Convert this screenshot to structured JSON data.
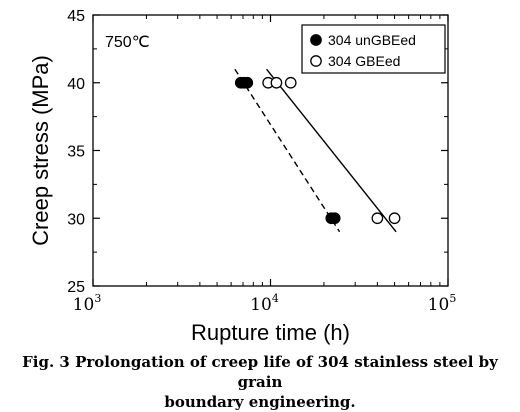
{
  "chart_data": {
    "type": "scatter",
    "annotation": "750℃",
    "xlabel": "Rupture time (h)",
    "ylabel": "Creep stress (MPa)",
    "x_scale": "log",
    "xlim": [
      1000,
      100000
    ],
    "ylim": [
      25,
      45
    ],
    "xticks": [
      {
        "value": 1000,
        "base": "10",
        "exp": "3"
      },
      {
        "value": 10000,
        "base": "10",
        "exp": "4"
      },
      {
        "value": 100000,
        "base": "10",
        "exp": "5"
      }
    ],
    "yticks": [
      25,
      30,
      35,
      40,
      45
    ],
    "legend_position": "top-right",
    "grid": false,
    "series": [
      {
        "name": "304 unGBEed",
        "marker": "filled-circle",
        "points": [
          {
            "x": 6800,
            "y": 40
          },
          {
            "x": 7100,
            "y": 40
          },
          {
            "x": 7400,
            "y": 40
          },
          {
            "x": 22000,
            "y": 30
          },
          {
            "x": 23000,
            "y": 30
          }
        ],
        "fit": {
          "style": "dashed",
          "from": {
            "x": 6300,
            "y": 41
          },
          "to": {
            "x": 24500,
            "y": 29
          }
        }
      },
      {
        "name": "304 GBEed",
        "marker": "open-circle",
        "points": [
          {
            "x": 9700,
            "y": 40
          },
          {
            "x": 10800,
            "y": 40
          },
          {
            "x": 13000,
            "y": 40
          },
          {
            "x": 40000,
            "y": 30
          },
          {
            "x": 50000,
            "y": 30
          }
        ],
        "fit": {
          "style": "solid",
          "from": {
            "x": 9500,
            "y": 41
          },
          "to": {
            "x": 51000,
            "y": 29
          }
        }
      }
    ]
  },
  "caption": {
    "line1": "Fig. 3 Prolongation of creep life of 304 stainless steel by grain",
    "line2": "boundary engineering."
  }
}
